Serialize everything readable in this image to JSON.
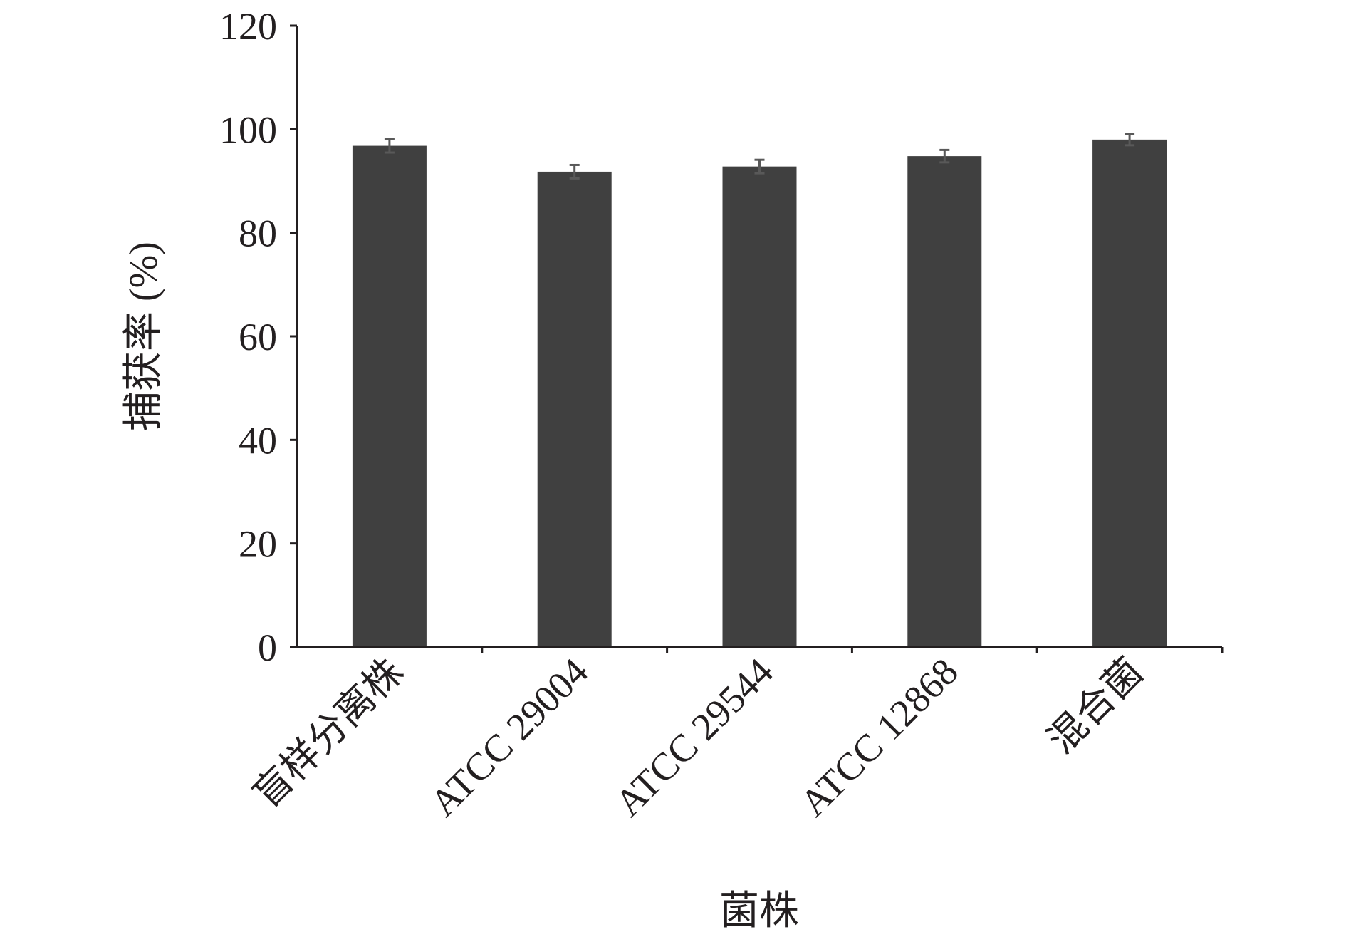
{
  "chart_data": {
    "type": "bar",
    "title": "",
    "xlabel": "菌株",
    "ylabel": "捕获率 (%)",
    "ylim": [
      0,
      120
    ],
    "yticks": [
      0,
      20,
      40,
      60,
      80,
      100,
      120
    ],
    "categories": [
      "盲样分离株",
      "ATCC 29004",
      "ATCC 29544",
      "ATCC 12868",
      "混合菌"
    ],
    "values": [
      96.8,
      91.8,
      92.8,
      94.8,
      98.0
    ],
    "errors": [
      1.3,
      1.3,
      1.3,
      1.2,
      1.1
    ],
    "bar_color": "#404040",
    "error_color": "#595959",
    "axis_color": "#231f20",
    "grid": false,
    "legend": "none"
  }
}
